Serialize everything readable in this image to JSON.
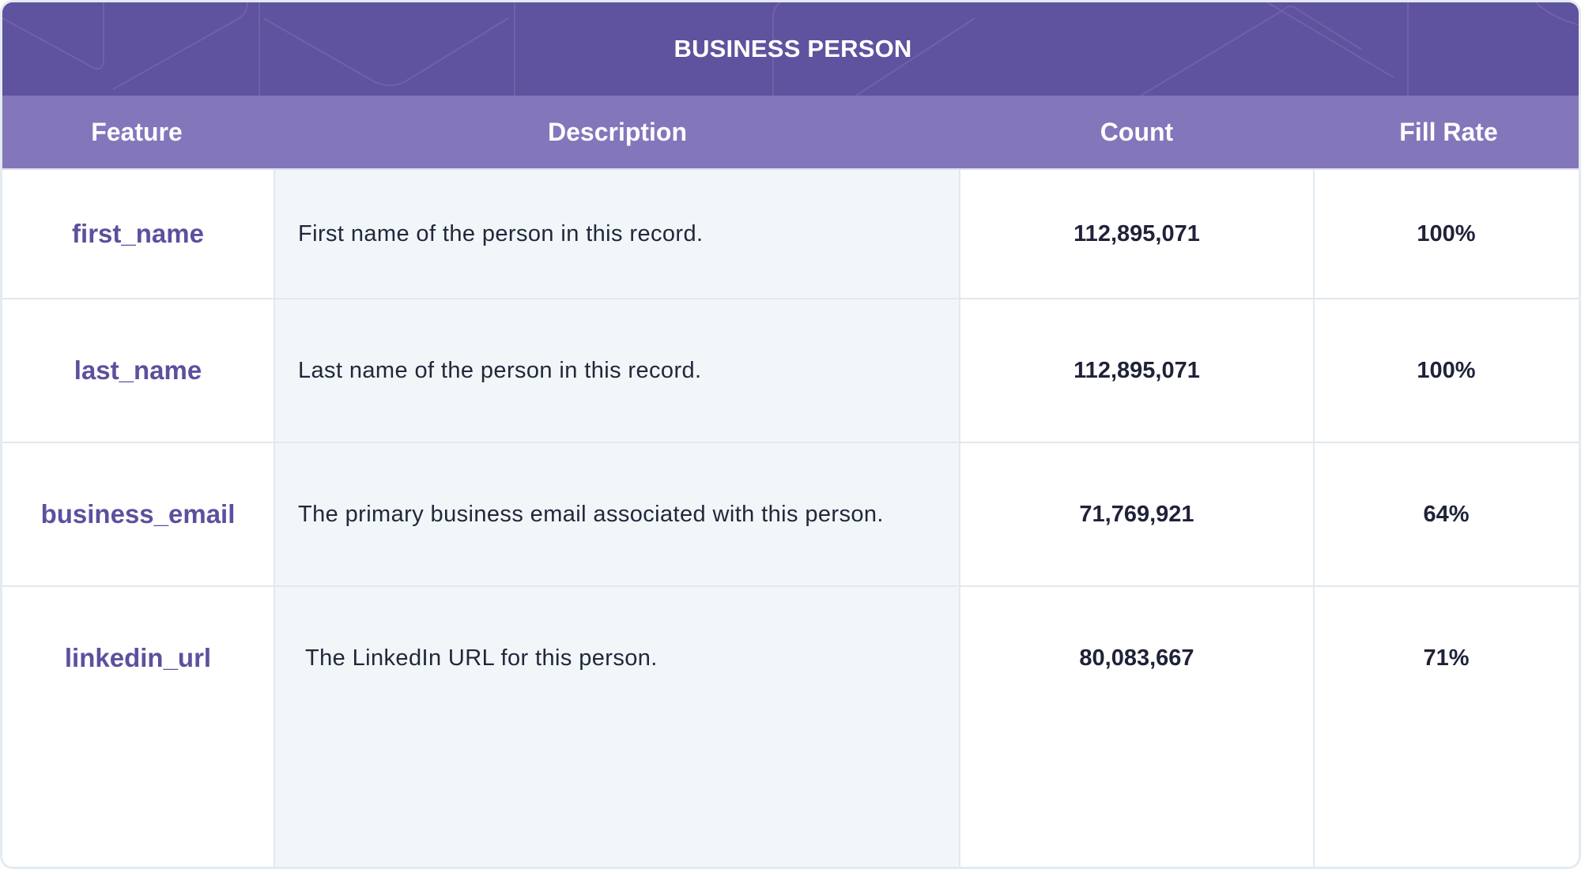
{
  "table": {
    "title": "BUSINESS PERSON",
    "columns": [
      "Feature",
      "Description",
      "Count",
      "Fill Rate"
    ],
    "rows": [
      {
        "feature": "first_name",
        "description": "First name of the person in this record.",
        "count": "112,895,071",
        "fill_rate": "100%"
      },
      {
        "feature": "last_name",
        "description": "Last name of the person in this record.",
        "count": "112,895,071",
        "fill_rate": "100%"
      },
      {
        "feature": "business_email",
        "description": "The primary business email associated with this person.",
        "count": "71,769,921",
        "fill_rate": "64%"
      },
      {
        "feature": "linkedin_url",
        "description": "The LinkedIn URL for this person.",
        "count": "80,083,667",
        "fill_rate": "71%"
      }
    ]
  },
  "colors": {
    "title_bg": "#5f529e",
    "header_bg": "#8476bb",
    "feature_text": "#5c509e",
    "description_bg": "#f1f6f9",
    "grid_line": "#e1e8ee"
  }
}
